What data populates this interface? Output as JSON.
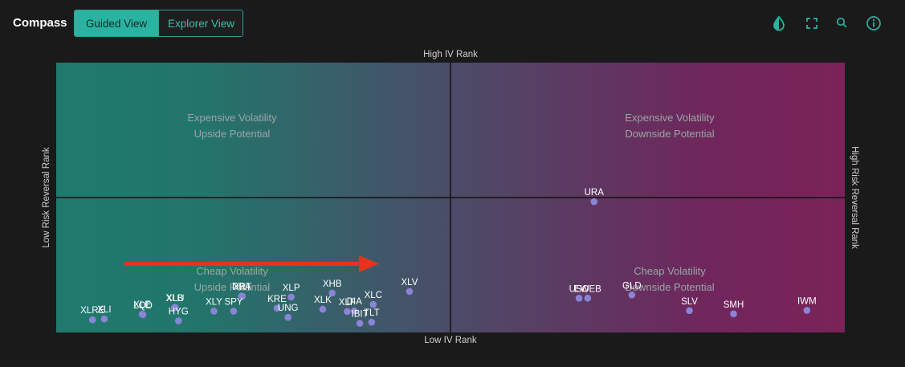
{
  "app": {
    "title": "Compass"
  },
  "tabs": [
    {
      "label": "Guided View",
      "active": true
    },
    {
      "label": "Explorer View",
      "active": false
    }
  ],
  "toolbar": {
    "icons": [
      "contrast-icon",
      "fullscreen-icon",
      "zoom-icon",
      "info-icon"
    ],
    "accent": "#2ab3a0"
  },
  "chart_data": {
    "type": "scatter",
    "axes": {
      "x_label_top": "High IV Rank",
      "x_label_bottom": "Low IV Rank",
      "y_label_left": "Low Risk Reversal Rank",
      "y_label_right": "High Risk Reversal Rank",
      "xlim": [
        0,
        100
      ],
      "ylim": [
        0,
        100
      ]
    },
    "quadrants": {
      "top_left": [
        "Expensive Volatility",
        "Upside Potential"
      ],
      "top_right": [
        "Expensive Volatility",
        "Downside Potential"
      ],
      "bottom_left": [
        "Cheap Volatility",
        "Upside Potential"
      ],
      "bottom_right": [
        "Cheap Volatility",
        "Downside Potential"
      ]
    },
    "colors": {
      "left": "#1f7a6d",
      "center": "#4b4c68",
      "right": "#7b2358",
      "point": "#8a84d6",
      "arrow": "#e8321f"
    },
    "grid": false,
    "points": [
      {
        "label": "XLRE",
        "x": 4.6,
        "y": 4.7
      },
      {
        "label": "XLI",
        "x": 6.1,
        "y": 5.0
      },
      {
        "label": "LQD",
        "x": 11.0,
        "y": 6.6
      },
      {
        "label": "XLE",
        "x": 10.9,
        "y": 6.8
      },
      {
        "label": "XLB",
        "x": 15.0,
        "y": 9.2
      },
      {
        "label": "XLU",
        "x": 15.1,
        "y": 9.3
      },
      {
        "label": "HYG",
        "x": 15.5,
        "y": 4.3
      },
      {
        "label": "XLY",
        "x": 20.0,
        "y": 7.9
      },
      {
        "label": "DBA",
        "x": 23.5,
        "y": 13.5
      },
      {
        "label": "XRT",
        "x": 23.6,
        "y": 13.4
      },
      {
        "label": "SPY",
        "x": 22.5,
        "y": 7.9
      },
      {
        "label": "XLP",
        "x": 29.8,
        "y": 13.1
      },
      {
        "label": "KRE",
        "x": 28.0,
        "y": 9.0
      },
      {
        "label": "UNG",
        "x": 29.4,
        "y": 5.6
      },
      {
        "label": "XHB",
        "x": 35.0,
        "y": 14.6
      },
      {
        "label": "XLK",
        "x": 33.8,
        "y": 8.6
      },
      {
        "label": "XLF",
        "x": 36.9,
        "y": 7.8
      },
      {
        "label": "DIA",
        "x": 37.8,
        "y": 8.0
      },
      {
        "label": "XLC",
        "x": 40.2,
        "y": 10.4
      },
      {
        "label": "IBIT",
        "x": 38.5,
        "y": 3.4
      },
      {
        "label": "TLT",
        "x": 40.0,
        "y": 3.8
      },
      {
        "label": "XLV",
        "x": 44.8,
        "y": 15.2
      },
      {
        "label": "URA",
        "x": 68.2,
        "y": 48.5
      },
      {
        "label": "USO",
        "x": 66.3,
        "y": 12.7
      },
      {
        "label": "EWEB",
        "x": 67.4,
        "y": 12.7
      },
      {
        "label": "GLD",
        "x": 73.0,
        "y": 13.9
      },
      {
        "label": "SLV",
        "x": 80.3,
        "y": 8.1
      },
      {
        "label": "SMH",
        "x": 85.9,
        "y": 6.9
      },
      {
        "label": "IWM",
        "x": 95.2,
        "y": 8.2
      }
    ],
    "annotation": {
      "type": "arrow",
      "direction": "right"
    }
  }
}
